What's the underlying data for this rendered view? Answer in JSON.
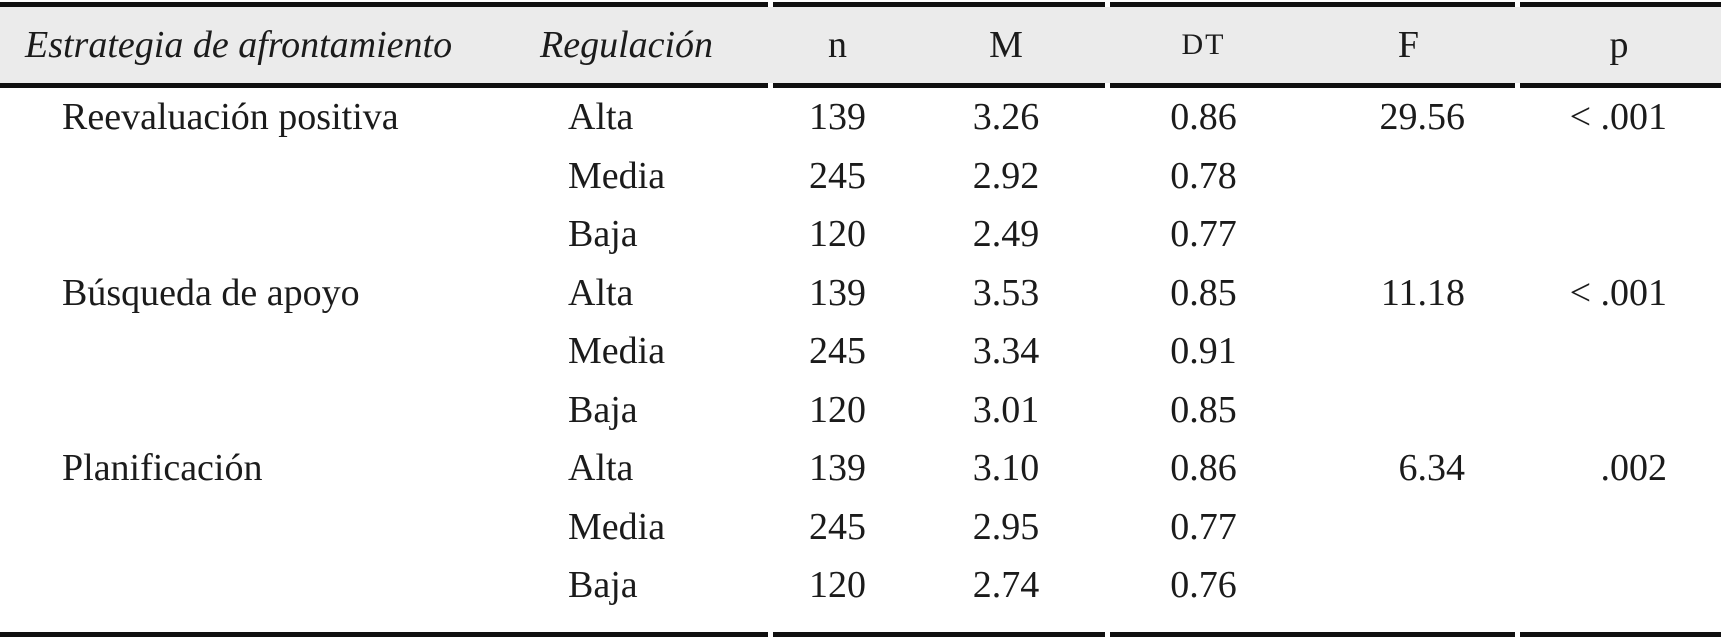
{
  "table": {
    "colors": {
      "header_background": "#ebebeb",
      "rule": "#101010",
      "text": "#1b1b1b"
    },
    "columns": [
      {
        "key": "estrategia",
        "label": "Estrategia de afrontamiento"
      },
      {
        "key": "regulacion",
        "label": "Regulación"
      },
      {
        "key": "n",
        "label": "n"
      },
      {
        "key": "m",
        "label": "M"
      },
      {
        "key": "dt",
        "label": "DT"
      },
      {
        "key": "f",
        "label": "F"
      },
      {
        "key": "p",
        "label": "p"
      }
    ],
    "groups": [
      {
        "estrategia": "Reevaluación positiva",
        "f": "29.56",
        "p": "< .001",
        "rows": [
          {
            "regulacion": "Alta",
            "n": "139",
            "m": "3.26",
            "dt": "0.86"
          },
          {
            "regulacion": "Media",
            "n": "245",
            "m": "2.92",
            "dt": "0.78"
          },
          {
            "regulacion": "Baja",
            "n": "120",
            "m": "2.49",
            "dt": "0.77"
          }
        ]
      },
      {
        "estrategia": "Búsqueda de apoyo",
        "f": "11.18",
        "p": "< .001",
        "rows": [
          {
            "regulacion": "Alta",
            "n": "139",
            "m": "3.53",
            "dt": "0.85"
          },
          {
            "regulacion": "Media",
            "n": "245",
            "m": "3.34",
            "dt": "0.91"
          },
          {
            "regulacion": "Baja",
            "n": "120",
            "m": "3.01",
            "dt": "0.85"
          }
        ]
      },
      {
        "estrategia": "Planificación",
        "f": "6.34",
        "p": ".002",
        "rows": [
          {
            "regulacion": "Alta",
            "n": "139",
            "m": "3.10",
            "dt": "0.86"
          },
          {
            "regulacion": "Media",
            "n": "245",
            "m": "2.95",
            "dt": "0.77"
          },
          {
            "regulacion": "Baja",
            "n": "120",
            "m": "2.74",
            "dt": "0.76"
          }
        ]
      }
    ]
  }
}
